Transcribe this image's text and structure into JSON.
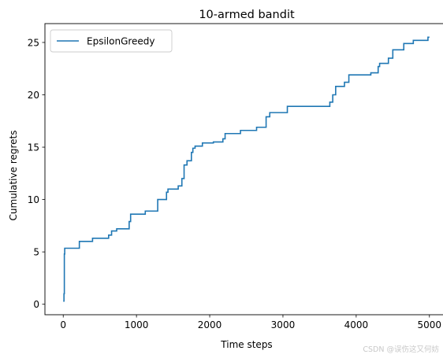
{
  "chart_data": {
    "type": "line",
    "title": "10-armed bandit",
    "xlabel": "Time steps",
    "ylabel": "Cumulative regrets",
    "xlim": [
      -250,
      5250
    ],
    "ylim": [
      -1.0,
      26.8
    ],
    "xticks": [
      0,
      1000,
      2000,
      3000,
      4000,
      5000
    ],
    "yticks": [
      0,
      5,
      10,
      15,
      20,
      25
    ],
    "grid": false,
    "legend_position": "upper-left",
    "series": [
      {
        "name": "EpsilonGreedy",
        "color": "#1f77b4",
        "step": "post",
        "points": [
          [
            0,
            0.3
          ],
          [
            10,
            1.0
          ],
          [
            15,
            4.8
          ],
          [
            20,
            5.35
          ],
          [
            220,
            6.0
          ],
          [
            400,
            6.3
          ],
          [
            620,
            6.6
          ],
          [
            660,
            7.0
          ],
          [
            730,
            7.2
          ],
          [
            900,
            7.9
          ],
          [
            920,
            8.6
          ],
          [
            1120,
            8.9
          ],
          [
            1290,
            10.0
          ],
          [
            1410,
            10.7
          ],
          [
            1430,
            11.0
          ],
          [
            1570,
            11.3
          ],
          [
            1620,
            12.0
          ],
          [
            1650,
            13.3
          ],
          [
            1690,
            13.7
          ],
          [
            1750,
            14.5
          ],
          [
            1770,
            14.9
          ],
          [
            1800,
            15.1
          ],
          [
            1900,
            15.4
          ],
          [
            2050,
            15.5
          ],
          [
            2180,
            15.8
          ],
          [
            2210,
            16.3
          ],
          [
            2420,
            16.6
          ],
          [
            2640,
            16.9
          ],
          [
            2770,
            17.9
          ],
          [
            2820,
            18.3
          ],
          [
            3060,
            18.9
          ],
          [
            3640,
            19.3
          ],
          [
            3680,
            20.0
          ],
          [
            3720,
            20.8
          ],
          [
            3840,
            21.2
          ],
          [
            3900,
            21.9
          ],
          [
            4200,
            22.1
          ],
          [
            4300,
            22.7
          ],
          [
            4320,
            23.0
          ],
          [
            4440,
            23.5
          ],
          [
            4500,
            24.3
          ],
          [
            4650,
            24.9
          ],
          [
            4780,
            25.2
          ],
          [
            4980,
            25.5
          ],
          [
            5000,
            25.5
          ]
        ]
      }
    ]
  },
  "watermark": "CSDN @误伤这又何妨"
}
